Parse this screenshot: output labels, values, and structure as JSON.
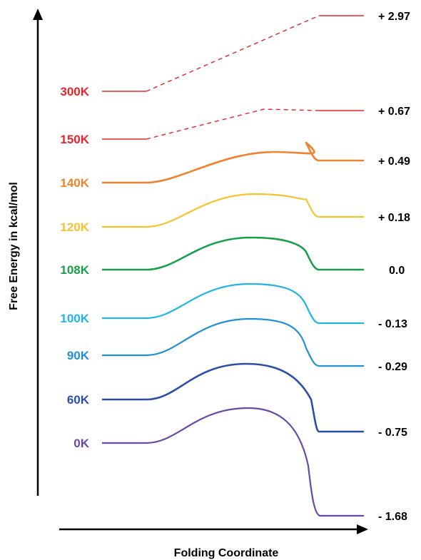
{
  "chart_data": {
    "type": "line",
    "title": "",
    "xlabel": "Folding Coordinate",
    "ylabel": "Free Energy in kcal/mol",
    "grid": false,
    "legend": "none",
    "series": [
      {
        "name": "300K",
        "color": "#e8242b",
        "style": "dashed-transition",
        "value_label": "+ 2.97",
        "value": 2.97
      },
      {
        "name": "150K",
        "color": "#e8242b",
        "style": "dashed-transition",
        "value_label": "+ 0.67",
        "value": 0.67
      },
      {
        "name": "140K",
        "color": "#f0812e",
        "style": "barrier",
        "value_label": "+ 0.49",
        "value": 0.49
      },
      {
        "name": "120K",
        "color": "#f6c22e",
        "style": "barrier",
        "value_label": "+ 0.18",
        "value": 0.18
      },
      {
        "name": "108K",
        "color": "#17a04a",
        "style": "barrier",
        "value_label": "0.0",
        "value": 0.0
      },
      {
        "name": "100K",
        "color": "#22b4e6",
        "style": "barrier",
        "value_label": "- 0.13",
        "value": -0.13
      },
      {
        "name": "90K",
        "color": "#1e90d6",
        "style": "barrier",
        "value_label": "- 0.29",
        "value": -0.29
      },
      {
        "name": "60K",
        "color": "#2c4ea8",
        "style": "barrier",
        "value_label": "- 0.75",
        "value": -0.75
      },
      {
        "name": "0K",
        "color": "#6a47a8",
        "style": "barrier",
        "value_label": "- 1.68",
        "value": -1.68
      }
    ]
  }
}
